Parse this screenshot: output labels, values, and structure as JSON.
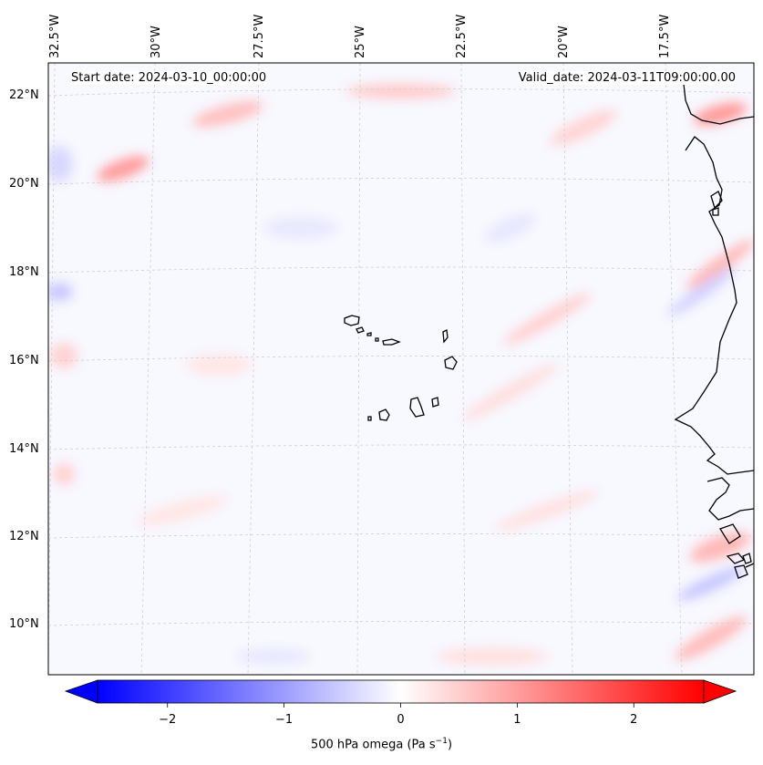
{
  "header": {
    "start_date": "Start date: 2024-03-10_00:00:00",
    "valid_date": "Valid_date: 2024-03-11T09:00:00.00"
  },
  "longitude_labels": [
    "32.5°W",
    "30°W",
    "27.5°W",
    "25°W",
    "22.5°W",
    "20°W",
    "17.5°W"
  ],
  "latitude_labels": [
    "22°N",
    "20°N",
    "18°N",
    "16°N",
    "14°N",
    "12°N",
    "10°N"
  ],
  "colorbar": {
    "ticks": [
      "−2",
      "−1",
      "0",
      "1",
      "2"
    ],
    "tick_values": [
      -2,
      -1,
      0,
      1,
      2
    ],
    "range": [
      -2.6,
      2.6
    ],
    "label": "500 hPa omega (Pa s",
    "label_exponent": "−1",
    "label_close": ")",
    "colors": {
      "negative": "#0000ff",
      "zero": "#ffffff",
      "positive": "#ff0000"
    }
  },
  "map": {
    "field": "500 hPa omega",
    "coastline_color": "#000000",
    "gridline_color": "#cfcfcf"
  }
}
